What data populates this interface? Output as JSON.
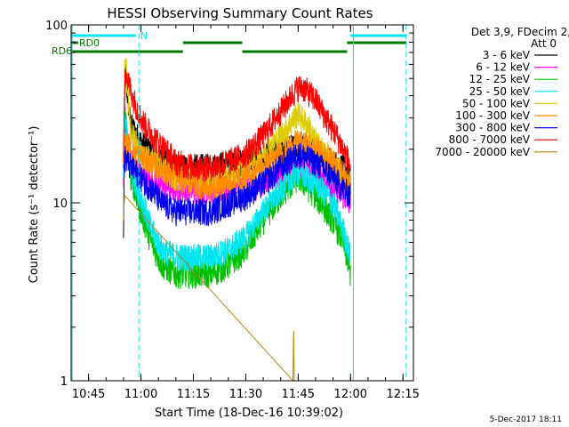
{
  "chart_data": {
    "type": "line",
    "title": "HESSI Observing Summary Count Rates",
    "xlabel": "Start Time (18-Dec-16 10:39:02)",
    "ylabel": "Count Rate (s⁻¹ detector⁻¹)",
    "y_scale": "log",
    "ylim": [
      1,
      100
    ],
    "xlim_minutes": [
      40,
      138
    ],
    "x_ticks": [
      {
        "minute": 45,
        "label": "10:45"
      },
      {
        "minute": 60,
        "label": "11:00"
      },
      {
        "minute": 75,
        "label": "11:15"
      },
      {
        "minute": 90,
        "label": "11:30"
      },
      {
        "minute": 105,
        "label": "11:45"
      },
      {
        "minute": 120,
        "label": "12:00"
      },
      {
        "minute": 135,
        "label": "12:15"
      }
    ],
    "y_ticks": [
      {
        "value": 1,
        "label": "1"
      },
      {
        "value": 10,
        "label": "10"
      },
      {
        "value": 100,
        "label": "100"
      }
    ],
    "legend_header": [
      "Det 3,9, FDecim 2,",
      "Att 0"
    ],
    "legend_position": "right",
    "annotations": {
      "rd0_label": "RD0",
      "rd6_label": "RD6",
      "n_label": "N",
      "date_stamp": "5-Dec-2017 18:11"
    },
    "flags": {
      "rd0_bar": {
        "color": "#00e5ee",
        "segments": [
          [
            40,
            58.5
          ],
          [
            120,
            136
          ]
        ]
      },
      "rd6_upper": {
        "color": "#007a00",
        "segments": [
          [
            40,
            42
          ],
          [
            72,
            89
          ],
          [
            119,
            136
          ]
        ]
      },
      "rd6_lower": {
        "color": "#007a00",
        "segments": [
          [
            40,
            72
          ],
          [
            89,
            119
          ]
        ]
      }
    },
    "vlines": [
      {
        "minute": 40.3,
        "style": "solid"
      },
      {
        "minute": 59.4,
        "style": "dashed"
      },
      {
        "minute": 120.8,
        "style": "solid"
      },
      {
        "minute": 135.9,
        "style": "dashed"
      }
    ],
    "series": [
      {
        "name": "3 - 6 keV",
        "color": "#000000",
        "points": [
          [
            55,
            6
          ],
          [
            55.4,
            55
          ],
          [
            57,
            28
          ],
          [
            60,
            22
          ],
          [
            65,
            18
          ],
          [
            70,
            16
          ],
          [
            75,
            16
          ],
          [
            80,
            16
          ],
          [
            85,
            17
          ],
          [
            90,
            17
          ],
          [
            95,
            18
          ],
          [
            100,
            20
          ],
          [
            105,
            21
          ],
          [
            110,
            20
          ],
          [
            115,
            17
          ],
          [
            118,
            16
          ],
          [
            120,
            14
          ]
        ]
      },
      {
        "name": "6 - 12 keV",
        "color": "#ff00ff",
        "points": [
          [
            55,
            14
          ],
          [
            55.4,
            30
          ],
          [
            57,
            18
          ],
          [
            60,
            14
          ],
          [
            65,
            13
          ],
          [
            70,
            12
          ],
          [
            75,
            12
          ],
          [
            80,
            12
          ],
          [
            85,
            12
          ],
          [
            90,
            12
          ],
          [
            95,
            13
          ],
          [
            100,
            15
          ],
          [
            105,
            16
          ],
          [
            110,
            15
          ],
          [
            115,
            12
          ],
          [
            118,
            11
          ],
          [
            120,
            10
          ]
        ]
      },
      {
        "name": "12 - 25 keV",
        "color": "#00c000",
        "points": [
          [
            55,
            14
          ],
          [
            55.4,
            32
          ],
          [
            57,
            14
          ],
          [
            60,
            9
          ],
          [
            63,
            6
          ],
          [
            66,
            4.5
          ],
          [
            70,
            4
          ],
          [
            75,
            4
          ],
          [
            80,
            4
          ],
          [
            85,
            4.5
          ],
          [
            90,
            5.5
          ],
          [
            95,
            8
          ],
          [
            100,
            11
          ],
          [
            105,
            14
          ],
          [
            110,
            11
          ],
          [
            115,
            8
          ],
          [
            118,
            6
          ],
          [
            120,
            4
          ]
        ]
      },
      {
        "name": "25 - 50 keV",
        "color": "#00e5ee",
        "points": [
          [
            55,
            16
          ],
          [
            55.4,
            30
          ],
          [
            57,
            16
          ],
          [
            60,
            11
          ],
          [
            63,
            7
          ],
          [
            66,
            5.5
          ],
          [
            70,
            5
          ],
          [
            75,
            5
          ],
          [
            80,
            5
          ],
          [
            85,
            5.5
          ],
          [
            90,
            6.5
          ],
          [
            95,
            9
          ],
          [
            100,
            12
          ],
          [
            105,
            15
          ],
          [
            110,
            13
          ],
          [
            115,
            10
          ],
          [
            118,
            7
          ],
          [
            120,
            5
          ]
        ]
      },
      {
        "name": "50 - 100 keV",
        "color": "#ddcc00",
        "points": [
          [
            55,
            18
          ],
          [
            55.4,
            70
          ],
          [
            57,
            26
          ],
          [
            60,
            19
          ],
          [
            65,
            17
          ],
          [
            70,
            14
          ],
          [
            75,
            14
          ],
          [
            80,
            14
          ],
          [
            85,
            14
          ],
          [
            90,
            16
          ],
          [
            95,
            19
          ],
          [
            100,
            24
          ],
          [
            105,
            32
          ],
          [
            108,
            27
          ],
          [
            110,
            22
          ],
          [
            115,
            17
          ],
          [
            120,
            12
          ]
        ]
      },
      {
        "name": "100 - 300 keV",
        "color": "#ff8c00",
        "points": [
          [
            55,
            18
          ],
          [
            55.4,
            22
          ],
          [
            57,
            20
          ],
          [
            60,
            18
          ],
          [
            65,
            16
          ],
          [
            70,
            14
          ],
          [
            75,
            13
          ],
          [
            80,
            12
          ],
          [
            85,
            13
          ],
          [
            90,
            14
          ],
          [
            95,
            16
          ],
          [
            100,
            19
          ],
          [
            105,
            22
          ],
          [
            110,
            20
          ],
          [
            115,
            17
          ],
          [
            120,
            13
          ]
        ]
      },
      {
        "name": "300 - 800 keV",
        "color": "#0000ee",
        "points": [
          [
            55,
            15
          ],
          [
            55.4,
            18
          ],
          [
            57,
            16
          ],
          [
            60,
            14
          ],
          [
            63,
            12
          ],
          [
            66,
            10
          ],
          [
            70,
            9
          ],
          [
            75,
            9
          ],
          [
            80,
            9
          ],
          [
            85,
            10
          ],
          [
            90,
            11
          ],
          [
            95,
            13
          ],
          [
            100,
            16
          ],
          [
            105,
            19
          ],
          [
            110,
            17
          ],
          [
            115,
            14
          ],
          [
            118,
            12
          ],
          [
            120,
            11
          ]
        ]
      },
      {
        "name": "800 - 7000 keV",
        "color": "#ff0000",
        "points": [
          [
            55,
            18
          ],
          [
            55.4,
            60
          ],
          [
            56,
            50
          ],
          [
            58,
            38
          ],
          [
            60,
            30
          ],
          [
            62,
            26
          ],
          [
            65,
            22
          ],
          [
            68,
            19
          ],
          [
            70,
            17
          ],
          [
            75,
            16
          ],
          [
            80,
            16
          ],
          [
            85,
            17
          ],
          [
            90,
            19
          ],
          [
            95,
            24
          ],
          [
            100,
            33
          ],
          [
            103,
            40
          ],
          [
            105,
            45
          ],
          [
            107,
            44
          ],
          [
            110,
            38
          ],
          [
            113,
            30
          ],
          [
            116,
            24
          ],
          [
            119,
            18
          ],
          [
            120,
            16
          ]
        ]
      },
      {
        "name": "7000 - 20000 keV",
        "color": "#b8860b",
        "points": [
          [
            55,
            8
          ],
          [
            55.3,
            11
          ],
          [
            103.5,
            1
          ],
          [
            103.7,
            1.9
          ],
          [
            103.9,
            1
          ]
        ]
      }
    ]
  }
}
